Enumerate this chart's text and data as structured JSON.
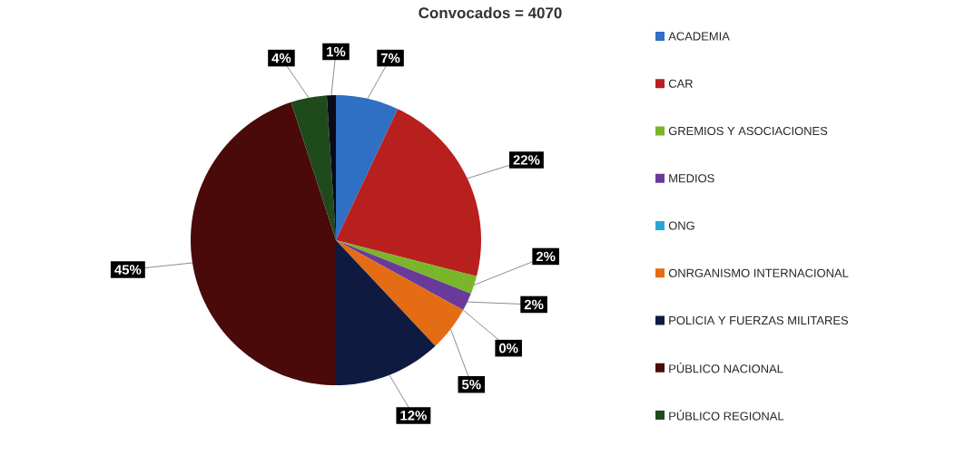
{
  "chart_data": {
    "type": "pie",
    "title": "Convocados = 4070",
    "categories": [
      "ACADEMIA",
      "CAR",
      "GREMIOS Y ASOCIACIONES",
      "MEDIOS",
      "ONG",
      "ONRGANISMO INTERNACIONAL",
      "POLICIA Y FUERZAS MILITARES",
      "PÚBLICO NACIONAL",
      "PÚBLICO REGIONAL",
      null
    ],
    "values": [
      7,
      22,
      2,
      2,
      0,
      5,
      12,
      45,
      4,
      1
    ],
    "value_labels": [
      "7%",
      "22%",
      "2%",
      "2%",
      "0%",
      "5%",
      "12%",
      "45%",
      "4%",
      "1%"
    ],
    "colors": [
      "#2f6fc4",
      "#b8201e",
      "#7ab629",
      "#6a3a9a",
      "#2aa6d6",
      "#e46c14",
      "#0f1a40",
      "#4a0a0a",
      "#1f4a1c",
      "#0a0a1a"
    ],
    "legend": "right"
  }
}
